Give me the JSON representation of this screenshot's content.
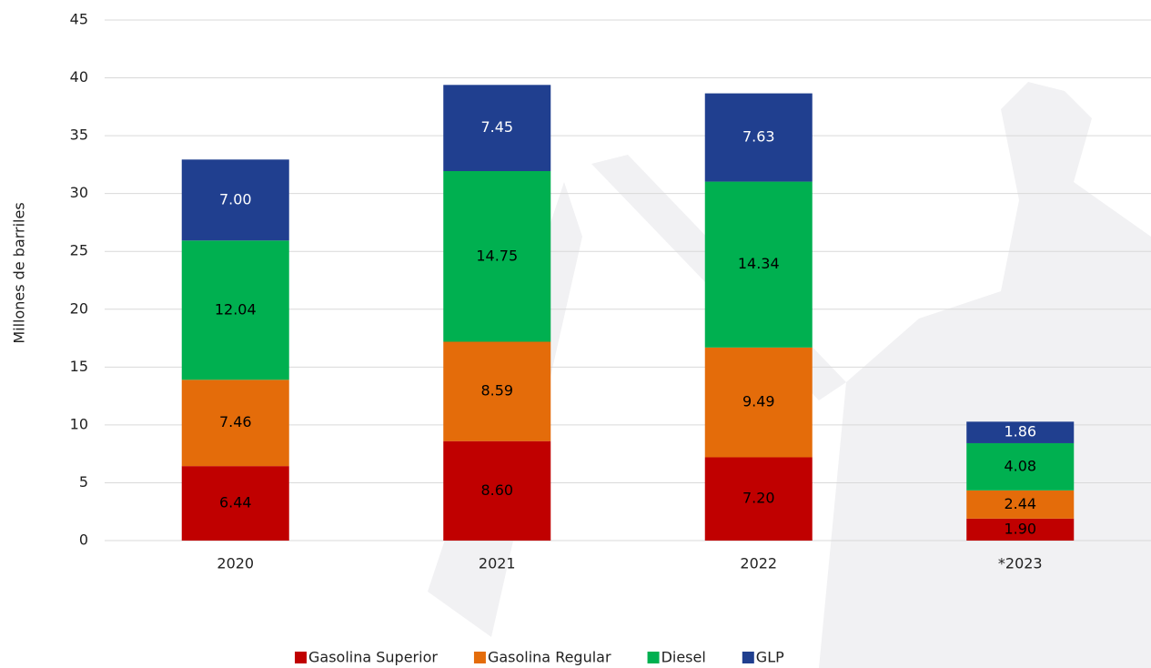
{
  "chart_data": {
    "type": "stacked_bar",
    "ylabel": "Millones de barriles",
    "categories": [
      "2020",
      "2021",
      "2022",
      "*2023"
    ],
    "series": [
      {
        "name": "Gasolina Superior",
        "color": "#c00000",
        "label_color": "#000000",
        "values": [
          6.44,
          8.6,
          7.2,
          1.9
        ],
        "value_labels": [
          "6.44",
          "8.60",
          "7.20",
          "1.90"
        ]
      },
      {
        "name": "Gasolina Regular",
        "color": "#e46c0a",
        "label_color": "#000000",
        "values": [
          7.46,
          8.59,
          9.49,
          2.44
        ],
        "value_labels": [
          "7.46",
          "8.59",
          "9.49",
          "2.44"
        ]
      },
      {
        "name": "Diesel",
        "color": "#00b050",
        "label_color": "#000000",
        "values": [
          12.04,
          14.75,
          14.34,
          4.08
        ],
        "value_labels": [
          "12.04",
          "14.75",
          "14.34",
          "4.08"
        ]
      },
      {
        "name": "GLP",
        "color": "#203f8f",
        "label_color": "#ffffff",
        "values": [
          7.0,
          7.45,
          7.63,
          1.86
        ],
        "value_labels": [
          "7.00",
          "7.45",
          "7.63",
          "1.86"
        ]
      }
    ],
    "ylim": [
      0,
      45
    ],
    "yticks": [
      0,
      5,
      10,
      15,
      20,
      25,
      30,
      35,
      40,
      45
    ],
    "grid": true,
    "legend": "bottom"
  }
}
